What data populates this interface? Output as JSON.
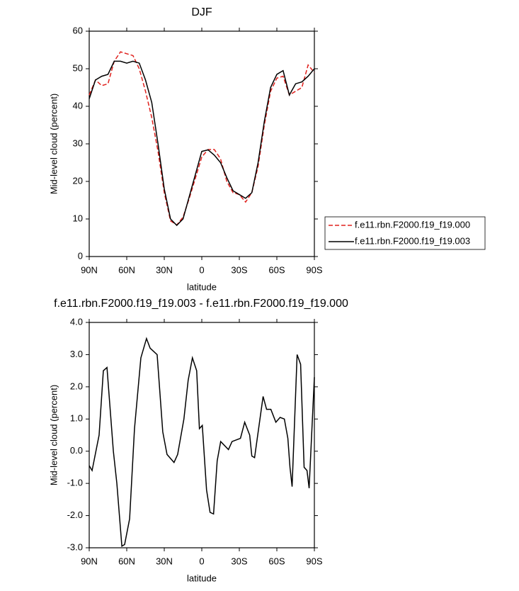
{
  "chart_data": [
    {
      "type": "line",
      "title": "DJF",
      "xlabel": "latitude",
      "ylabel": "Mid-level cloud (percent)",
      "x": [
        90,
        85,
        80,
        75,
        70,
        65,
        60,
        55,
        50,
        45,
        40,
        35,
        30,
        25,
        20,
        15,
        10,
        5,
        0,
        -5,
        -10,
        -15,
        -20,
        -25,
        -30,
        -35,
        -40,
        -45,
        -50,
        -55,
        -60,
        -65,
        -70,
        -75,
        -80,
        -85,
        -90
      ],
      "series": [
        {
          "name": "f.e11.rbn.F2000.f19_f19.000",
          "color": "#e0211d",
          "line_style": "dashed",
          "values": [
            43,
            47,
            45.5,
            46,
            52,
            54.5,
            54,
            53.5,
            50,
            44,
            37,
            28,
            17,
            9.5,
            8.4,
            10.5,
            15.5,
            21,
            26.5,
            28.5,
            28.5,
            26,
            20,
            17,
            16.5,
            14.5,
            17,
            24,
            35,
            44,
            47.5,
            48,
            43,
            44,
            45,
            51,
            49
          ]
        },
        {
          "name": "f.e11.rbn.F2000.f19_f19.003",
          "color": "#000000",
          "line_style": "solid",
          "values": [
            42,
            47,
            48,
            48.5,
            52,
            52,
            51.5,
            52,
            51.5,
            47,
            41,
            30,
            18,
            10,
            8.3,
            10,
            16,
            22,
            28,
            28.4,
            27,
            25,
            21,
            17.5,
            16.5,
            15.5,
            17,
            25,
            36,
            45,
            48.5,
            49.5,
            43,
            46,
            46.5,
            48,
            50
          ]
        }
      ],
      "xlim": [
        90,
        -90
      ],
      "xticks": [
        {
          "value": 90,
          "label": "90N"
        },
        {
          "value": 60,
          "label": "60N"
        },
        {
          "value": 30,
          "label": "30N"
        },
        0,
        {
          "value": -30,
          "label": "30S"
        },
        {
          "value": -60,
          "label": "60S"
        },
        {
          "value": -90,
          "label": "90S"
        }
      ],
      "ylim": [
        0,
        60
      ],
      "yticks": [
        0,
        10,
        20,
        30,
        40,
        50,
        60
      ],
      "legend": "outside-right"
    },
    {
      "type": "line",
      "title": "f.e11.rbn.F2000.f19_f19.003 - f.e11.rbn.F2000.f19_f19.000",
      "xlabel": "latitude",
      "ylabel": "Mid-level cloud (percent)",
      "x": [
        90,
        87.7,
        82.1,
        78.7,
        75.8,
        70.7,
        67.9,
        63.9,
        61.7,
        57.7,
        53.8,
        48.7,
        44.2,
        41.3,
        35.7,
        31.2,
        27.8,
        22.2,
        19.3,
        14.3,
        10.9,
        7.5,
        4.1,
        1.9,
        -0.4,
        -3.8,
        -6.6,
        -9.4,
        -12.3,
        -15.1,
        -21.3,
        -24.2,
        -30.9,
        -34.3,
        -38.3,
        -40.0,
        -42.2,
        -49.0,
        -51.8,
        -55.2,
        -59.2,
        -62.6,
        -66.0,
        -68.8,
        -70.5,
        -72.2,
        -76.2,
        -79.0,
        -81.8,
        -84.1,
        -85.8,
        -90
      ],
      "values": [
        -0.45,
        -0.6,
        0.5,
        2.5,
        2.6,
        0,
        -1.0,
        -2.95,
        -2.9,
        -2.1,
        0.7,
        2.9,
        3.5,
        3.2,
        3.0,
        0.6,
        -0.1,
        -0.35,
        -0.1,
        1.0,
        2.2,
        2.9,
        2.5,
        0.7,
        0.8,
        -1.2,
        -1.9,
        -1.95,
        -0.3,
        0.3,
        0.05,
        0.3,
        0.4,
        0.9,
        0.5,
        -0.15,
        -0.2,
        1.7,
        1.3,
        1.3,
        0.9,
        1.05,
        1.0,
        0.4,
        -0.5,
        -1.1,
        3.0,
        2.7,
        -0.5,
        -0.6,
        -1.15,
        2.3
      ],
      "color": "#000000",
      "xlim": [
        90,
        -90
      ],
      "xticks": [
        {
          "value": 90,
          "label": "90N"
        },
        {
          "value": 60,
          "label": "60N"
        },
        {
          "value": 30,
          "label": "30N"
        },
        0,
        {
          "value": -30,
          "label": "30S"
        },
        {
          "value": -60,
          "label": "60S"
        },
        {
          "value": -90,
          "label": "90S"
        }
      ],
      "ylim": [
        -3,
        4
      ],
      "yticks": [
        {
          "value": -3,
          "label": "-3.0"
        },
        {
          "value": -2,
          "label": "-2.0"
        },
        {
          "value": -1,
          "label": "-1.0"
        },
        {
          "value": 0,
          "label": "0.0"
        },
        {
          "value": 1,
          "label": "1.0"
        },
        {
          "value": 2,
          "label": "2.0"
        },
        {
          "value": 3,
          "label": "3.0"
        },
        {
          "value": 4,
          "label": "4.0"
        }
      ]
    }
  ]
}
